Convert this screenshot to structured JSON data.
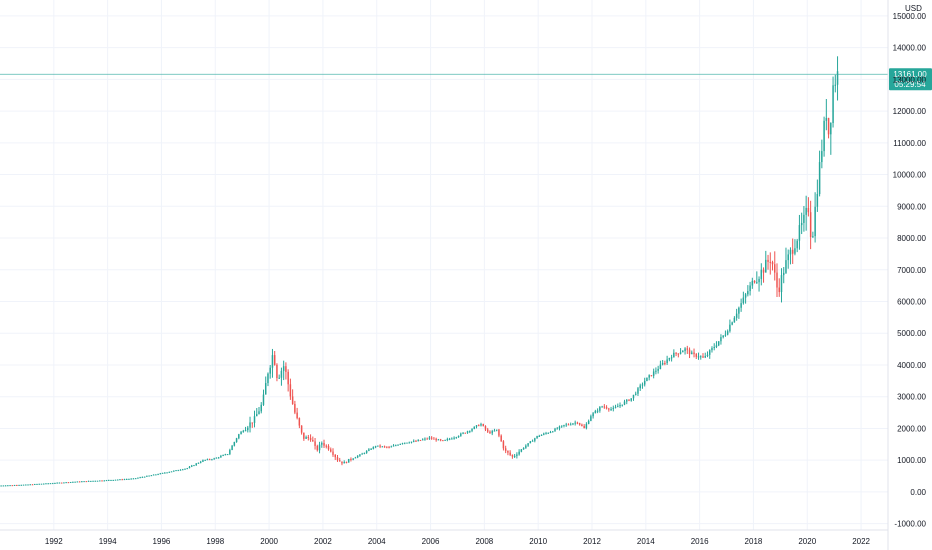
{
  "chart_data": {
    "type": "candlestick",
    "currency_label": "USD",
    "colors": {
      "up": "#26a69a",
      "down": "#ef5350",
      "grid": "#f0f3fa",
      "axis_text": "#131722",
      "price_line": "#26a69a",
      "price_tag": "#26a69a"
    },
    "y_axis": {
      "range": [
        -1200,
        15500
      ],
      "ticks": [
        "-1000.00",
        "0.00",
        "1000.00",
        "2000.00",
        "3000.00",
        "4000.00",
        "5000.00",
        "6000.00",
        "7000.00",
        "8000.00",
        "9000.00",
        "10000.00",
        "11000.00",
        "12000.00",
        "13000.00",
        "14000.00",
        "15000.00"
      ],
      "tick_values": [
        -1000,
        0,
        1000,
        2000,
        3000,
        4000,
        5000,
        6000,
        7000,
        8000,
        9000,
        10000,
        11000,
        12000,
        13000,
        14000,
        15000
      ]
    },
    "x_axis": {
      "range": [
        1990.0,
        2023.0
      ],
      "ticks": [
        "1992",
        "1994",
        "1996",
        "1998",
        "2000",
        "2002",
        "2004",
        "2006",
        "2008",
        "2010",
        "2012",
        "2014",
        "2016",
        "2018",
        "2020",
        "2022"
      ],
      "tick_values": [
        1992,
        1994,
        1996,
        1998,
        2000,
        2002,
        2004,
        2006,
        2008,
        2010,
        2012,
        2014,
        2016,
        2018,
        2020,
        2022
      ]
    },
    "last_price": {
      "value": 13161,
      "label": "13161.00",
      "countdown": "05:29:54"
    },
    "anchors": [
      [
        1990.0,
        200
      ],
      [
        1991.0,
        230
      ],
      [
        1992.0,
        280
      ],
      [
        1993.0,
        330
      ],
      [
        1994.0,
        370
      ],
      [
        1995.0,
        420
      ],
      [
        1996.0,
        580
      ],
      [
        1997.0,
        750
      ],
      [
        1997.6,
        1000
      ],
      [
        1998.0,
        1050
      ],
      [
        1998.5,
        1200
      ],
      [
        1998.9,
        1800
      ],
      [
        1999.5,
        2300
      ],
      [
        1999.8,
        2800
      ],
      [
        2000.0,
        3800
      ],
      [
        2000.2,
        4400
      ],
      [
        2000.35,
        3600
      ],
      [
        2000.6,
        4000
      ],
      [
        2000.85,
        3000
      ],
      [
        2001.0,
        2500
      ],
      [
        2001.3,
        1700
      ],
      [
        2001.6,
        1700
      ],
      [
        2001.8,
        1300
      ],
      [
        2002.0,
        1550
      ],
      [
        2002.3,
        1350
      ],
      [
        2002.6,
        1000
      ],
      [
        2002.8,
        900
      ],
      [
        2003.0,
        1000
      ],
      [
        2003.5,
        1200
      ],
      [
        2004.0,
        1450
      ],
      [
        2004.5,
        1400
      ],
      [
        2005.0,
        1550
      ],
      [
        2005.5,
        1600
      ],
      [
        2006.0,
        1700
      ],
      [
        2006.5,
        1600
      ],
      [
        2007.0,
        1750
      ],
      [
        2007.5,
        1950
      ],
      [
        2007.9,
        2150
      ],
      [
        2008.2,
        1850
      ],
      [
        2008.5,
        1950
      ],
      [
        2008.8,
        1300
      ],
      [
        2009.1,
        1100
      ],
      [
        2009.5,
        1400
      ],
      [
        2010.0,
        1750
      ],
      [
        2010.5,
        1900
      ],
      [
        2011.0,
        2100
      ],
      [
        2011.5,
        2200
      ],
      [
        2011.75,
        2000
      ],
      [
        2012.0,
        2400
      ],
      [
        2012.4,
        2700
      ],
      [
        2012.8,
        2600
      ],
      [
        2013.0,
        2700
      ],
      [
        2013.5,
        2950
      ],
      [
        2014.0,
        3500
      ],
      [
        2014.5,
        3900
      ],
      [
        2015.0,
        4300
      ],
      [
        2015.5,
        4500
      ],
      [
        2015.8,
        4300
      ],
      [
        2016.0,
        4300
      ],
      [
        2016.2,
        4200
      ],
      [
        2016.5,
        4500
      ],
      [
        2017.0,
        5000
      ],
      [
        2017.5,
        5800
      ],
      [
        2018.0,
        6600
      ],
      [
        2018.3,
        6900
      ],
      [
        2018.7,
        7400
      ],
      [
        2018.95,
        6300
      ],
      [
        2019.2,
        7100
      ],
      [
        2019.5,
        7700
      ],
      [
        2019.9,
        8500
      ],
      [
        2020.1,
        9000
      ],
      [
        2020.2,
        7800
      ],
      [
        2020.4,
        9500
      ],
      [
        2020.6,
        11000
      ],
      [
        2020.75,
        12000
      ],
      [
        2020.85,
        11200
      ],
      [
        2021.0,
        12800
      ],
      [
        2021.15,
        13161
      ]
    ]
  }
}
